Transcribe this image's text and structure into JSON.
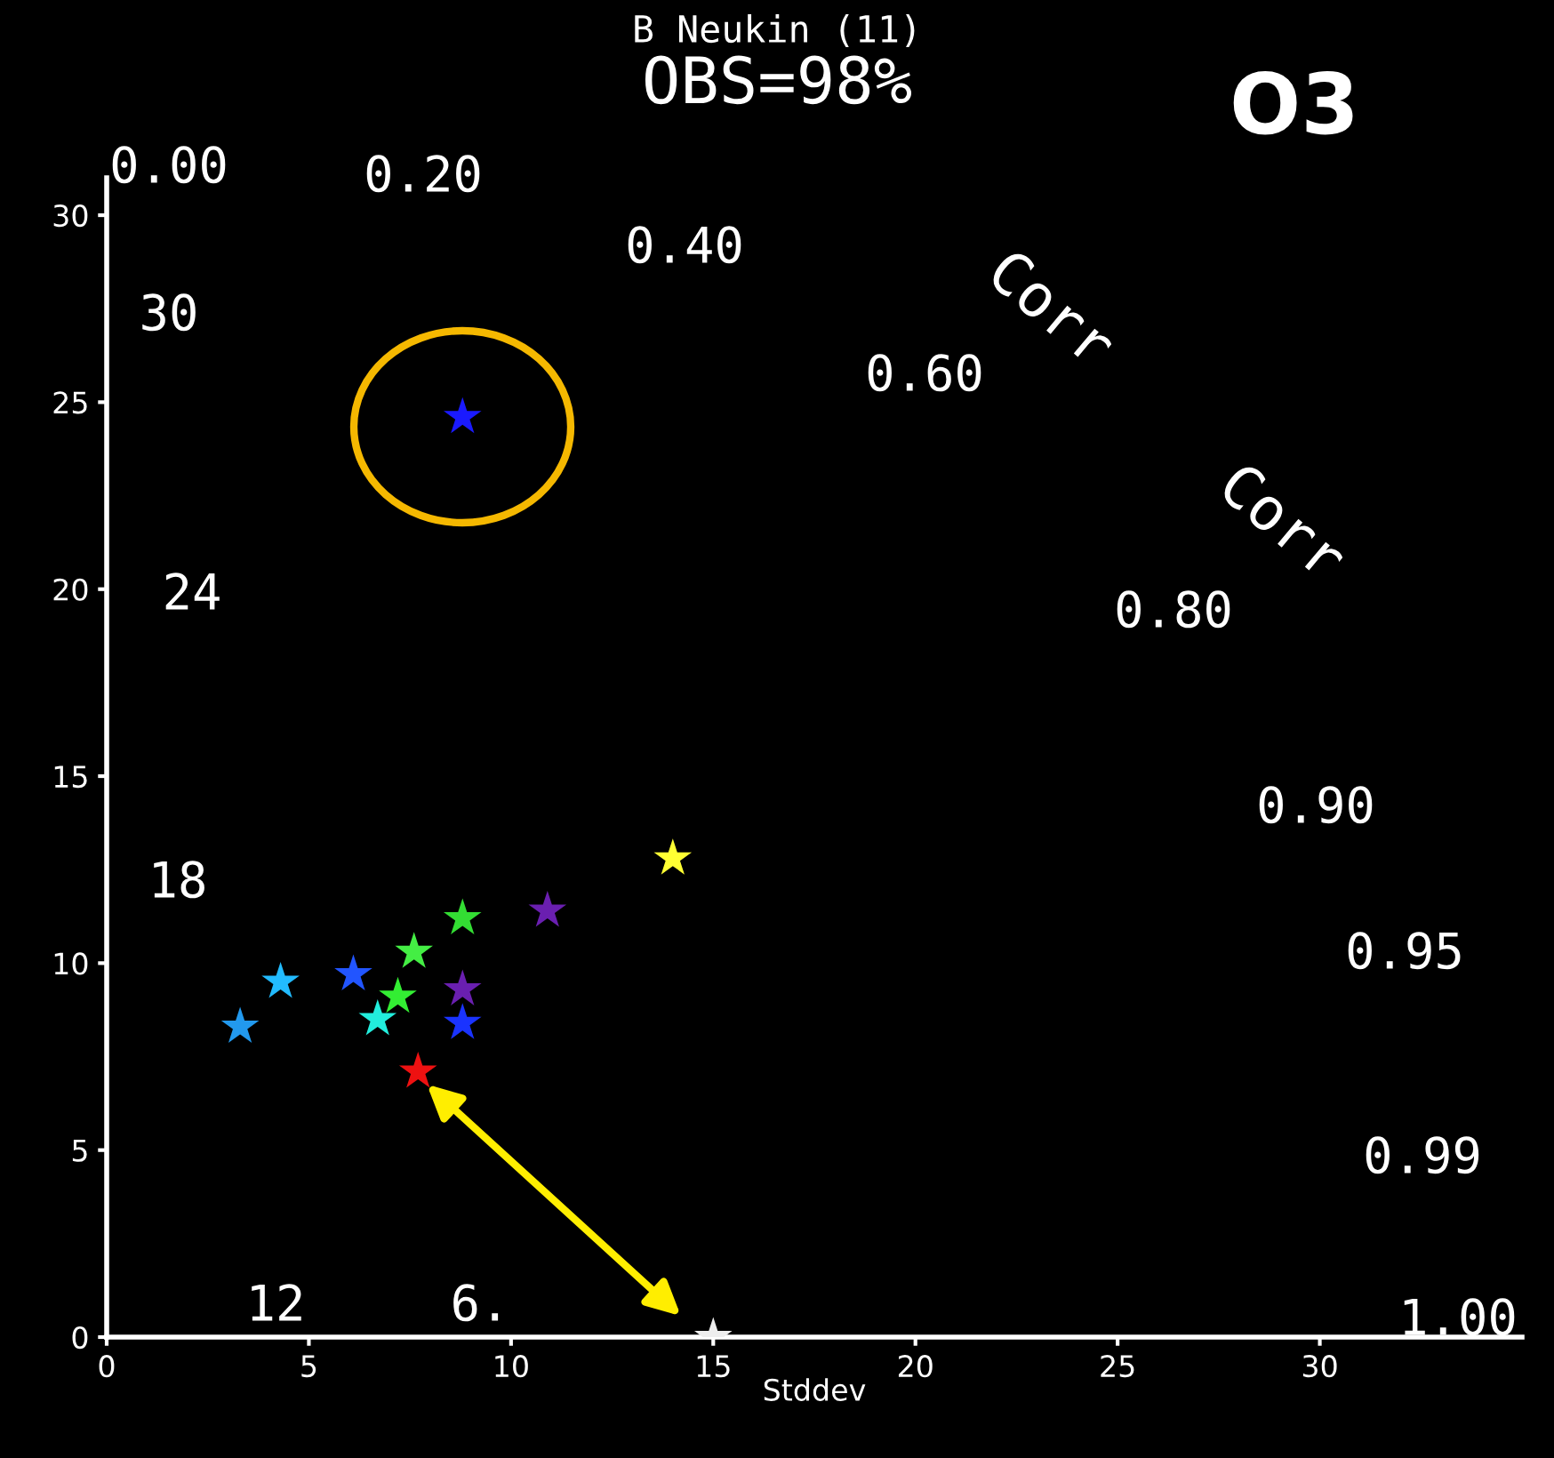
{
  "chart_data": {
    "type": "scatter",
    "title": "B Neukin (11)",
    "subtitle": "OBS=98%",
    "xlabel": "Stddev",
    "x": [
      8.8,
      14.0,
      10.9,
      8.8,
      7.6,
      6.1,
      4.3,
      3.3,
      6.7,
      7.2,
      8.8,
      8.8,
      7.7,
      15.0
    ],
    "values": [
      24.6,
      12.8,
      11.4,
      11.2,
      10.3,
      9.7,
      9.5,
      8.3,
      8.5,
      9.1,
      9.3,
      8.4,
      7.1,
      0.0
    ],
    "colors": [
      "#1a1aff",
      "#ffff33",
      "#6a1fb0",
      "#33dd33",
      "#44ee44",
      "#2255ff",
      "#22bbff",
      "#2299ee",
      "#22eedd",
      "#33ee33",
      "#6a1fb0",
      "#1a33ff",
      "#ee1111",
      "#eeeeee"
    ],
    "marker": "star",
    "xlim": [
      0,
      35
    ],
    "ylim": [
      0,
      31
    ],
    "xticks": [
      0,
      5,
      10,
      15,
      20,
      25,
      30
    ],
    "yticks": [
      0,
      5,
      10,
      15,
      20,
      25,
      30
    ],
    "grid": false,
    "legend": false,
    "annotations": [
      "O3",
      "0.00",
      "0.20",
      "0.40",
      "0.60",
      "0.80",
      "0.90",
      "0.95",
      "0.99",
      "1.00",
      "30",
      "24",
      "18",
      "12",
      "6.",
      "Corr",
      "Corr"
    ]
  }
}
